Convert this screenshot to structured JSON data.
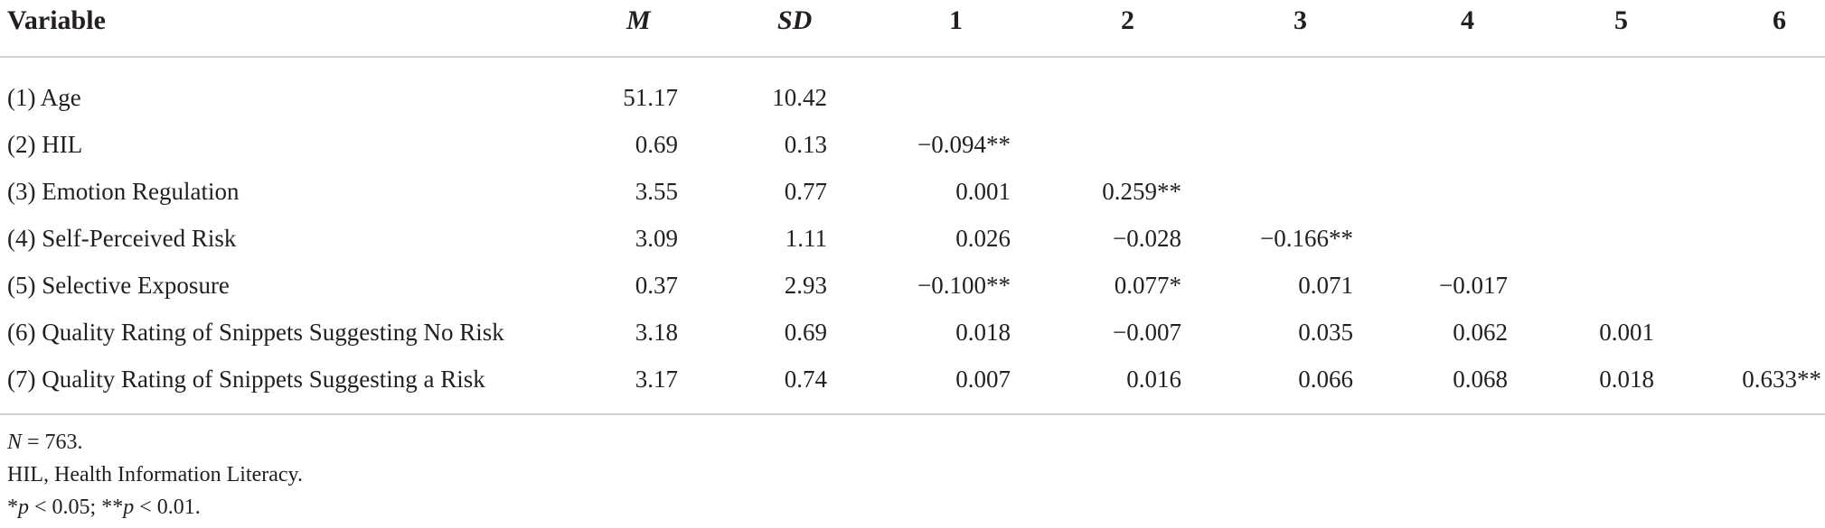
{
  "headers": {
    "variable": "Variable",
    "m": "M",
    "sd": "SD",
    "c1": "1",
    "c2": "2",
    "c3": "3",
    "c4": "4",
    "c5": "5",
    "c6": "6"
  },
  "rows": [
    {
      "label": "(1) Age",
      "m": "51.17",
      "sd": "10.42",
      "c1": "",
      "c2": "",
      "c3": "",
      "c4": "",
      "c5": "",
      "c6": ""
    },
    {
      "label": "(2) HIL",
      "m": "0.69",
      "sd": "0.13",
      "c1": "−0.094**",
      "c2": "",
      "c3": "",
      "c4": "",
      "c5": "",
      "c6": ""
    },
    {
      "label": "(3) Emotion Regulation",
      "m": "3.55",
      "sd": "0.77",
      "c1": "0.001",
      "c2": "0.259**",
      "c3": "",
      "c4": "",
      "c5": "",
      "c6": ""
    },
    {
      "label": "(4) Self-Perceived Risk",
      "m": "3.09",
      "sd": "1.11",
      "c1": "0.026",
      "c2": "−0.028",
      "c3": "−0.166**",
      "c4": "",
      "c5": "",
      "c6": ""
    },
    {
      "label": "(5) Selective Exposure",
      "m": "0.37",
      "sd": "2.93",
      "c1": "−0.100**",
      "c2": "0.077*",
      "c3": "0.071",
      "c4": "−0.017",
      "c5": "",
      "c6": ""
    },
    {
      "label": "(6) Quality Rating of Snippets Suggesting No Risk",
      "m": "3.18",
      "sd": "0.69",
      "c1": "0.018",
      "c2": "−0.007",
      "c3": "0.035",
      "c4": "0.062",
      "c5": "0.001",
      "c6": ""
    },
    {
      "label": "(7) Quality Rating of Snippets Suggesting a Risk",
      "m": "3.17",
      "sd": "0.74",
      "c1": "0.007",
      "c2": "0.016",
      "c3": "0.066",
      "c4": "0.068",
      "c5": "0.018",
      "c6": "0.633**"
    }
  ],
  "notes": {
    "n_symbol": "N",
    "n_value": " = 763.",
    "abbrev": "HIL, Health Information Literacy.",
    "sig_prefix1": "*",
    "p1": "p",
    "sig_mid": " < 0.05; **",
    "p2": "p",
    "sig_end": " < 0.01."
  }
}
